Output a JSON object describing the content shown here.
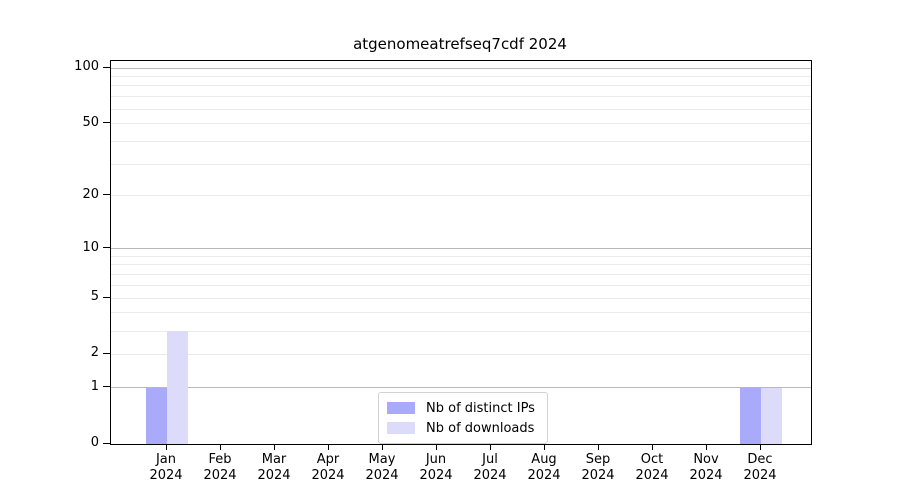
{
  "title": "atgenomeatrefseq7cdf 2024",
  "chart_data": {
    "type": "bar",
    "title": "atgenomeatrefseq7cdf 2024",
    "categories": [
      "Jan 2024",
      "Feb 2024",
      "Mar 2024",
      "Apr 2024",
      "May 2024",
      "Jun 2024",
      "Jul 2024",
      "Aug 2024",
      "Sep 2024",
      "Oct 2024",
      "Nov 2024",
      "Dec 2024"
    ],
    "series": [
      {
        "name": "Nb of distinct IPs",
        "color": "#aaaafa",
        "values": [
          1,
          0,
          0,
          0,
          0,
          0,
          0,
          0,
          0,
          0,
          0,
          1
        ]
      },
      {
        "name": "Nb of downloads",
        "color": "#dcdcfa",
        "values": [
          3,
          0,
          0,
          0,
          0,
          0,
          0,
          0,
          0,
          0,
          0,
          1
        ]
      }
    ],
    "xlabel": "",
    "ylabel": "",
    "yscale": "log1p",
    "ylim": [
      0,
      109
    ],
    "y_tick_values": [
      0,
      1,
      2,
      5,
      10,
      20,
      50,
      100
    ],
    "y_tick_labels": [
      "0",
      "1",
      "2",
      "5",
      "10",
      "20",
      "50",
      "100"
    ],
    "grid_major": [
      1,
      10,
      100
    ],
    "grid_minor": [
      2,
      3,
      4,
      5,
      6,
      7,
      8,
      9,
      20,
      30,
      40,
      50,
      60,
      70,
      80,
      90
    ],
    "legend_position": "lower center",
    "grid": "on"
  }
}
